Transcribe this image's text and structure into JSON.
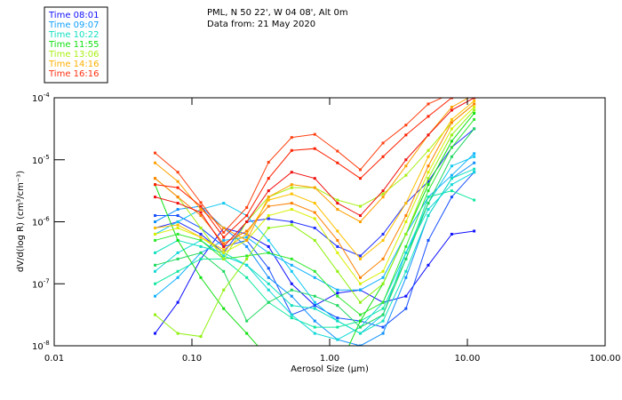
{
  "header": {
    "line1": "PML, N 50 22', W 04 08', Alt 0m",
    "line2": "Data from: 21 May 2020"
  },
  "chart_data": {
    "type": "line",
    "title": "PML, N 50 22', W 04 08', Alt 0m",
    "subtitle": "Data from: 21 May 2020",
    "xlabel": "Aerosol Size (μm)",
    "ylabel": "dV/d(log R) (cm³/cm⁻³)",
    "xscale": "log",
    "yscale": "log",
    "xlim": [
      0.01,
      100
    ],
    "ylim": [
      1e-08,
      0.0001
    ],
    "x_tick_labels": [
      "0.01",
      "0.10",
      "1.00",
      "10.00",
      "100.00"
    ],
    "y_tick_labels": [
      {
        "base": "10",
        "exp": "-4"
      },
      {
        "base": "10",
        "exp": "-5"
      },
      {
        "base": "10",
        "exp": "-6"
      },
      {
        "base": "10",
        "exp": "-7"
      },
      {
        "base": "10",
        "exp": "-8"
      }
    ],
    "legend": {
      "placement": "top-left-outside",
      "entries": [
        {
          "label": "Time 08:01",
          "color": "#1010ff"
        },
        {
          "label": "Time 09:07",
          "color": "#10a0ff"
        },
        {
          "label": "Time 10:22",
          "color": "#10e0c0"
        },
        {
          "label": "Time 11:55",
          "color": "#10e010"
        },
        {
          "label": "Time 13:06",
          "color": "#a8f010"
        },
        {
          "label": "Time 14:16",
          "color": "#ffb000"
        },
        {
          "label": "Time 16:16",
          "color": "#ff3010"
        }
      ]
    },
    "x": [
      0.054,
      0.079,
      0.116,
      0.17,
      0.25,
      0.36,
      0.53,
      0.78,
      1.14,
      1.67,
      2.44,
      3.58,
      5.2,
      7.7,
      11.2
    ],
    "y_note": "values are log10 of dV/d(log R)",
    "series": [
      {
        "name": "08:01 a",
        "color": "#1010ff",
        "values_log10": [
          -7.8,
          -7.3,
          -6.6,
          -6.1,
          -6.2,
          -6.4,
          -7.0,
          -7.35,
          -7.15,
          -7.1,
          -7.3,
          -7.2,
          -6.7,
          -6.2,
          -6.15
        ]
      },
      {
        "name": "08:01 b",
        "color": "#2030ff",
        "values_log10": [
          -6.1,
          -6.0,
          -6.2,
          -6.5,
          -6.0,
          -5.95,
          -6.0,
          -6.1,
          -6.4,
          -6.55,
          -6.2,
          -5.7,
          -5.35,
          -4.8,
          -4.5
        ]
      },
      {
        "name": "08:01 c",
        "color": "#1850ff",
        "values_log10": [
          -5.9,
          -5.9,
          -6.1,
          -6.4,
          -6.3,
          -6.75,
          -7.5,
          -7.35,
          -7.55,
          -7.6,
          -7.7,
          -7.4,
          -6.3,
          -5.6,
          -5.2
        ]
      },
      {
        "name": "09:07 a",
        "color": "#1090ff",
        "values_log10": [
          -6.0,
          -5.8,
          -5.75,
          -6.1,
          -6.4,
          -6.9,
          -7.2,
          -7.6,
          -7.9,
          -8.0,
          -7.8,
          -6.9,
          -5.9,
          -5.3,
          -5.05
        ]
      },
      {
        "name": "09:07 b",
        "color": "#10b0ff",
        "values_log10": [
          -7.2,
          -6.9,
          -6.5,
          -6.3,
          -6.25,
          -6.5,
          -6.7,
          -6.9,
          -7.1,
          -7.1,
          -6.9,
          -6.2,
          -5.6,
          -5.25,
          -4.9
        ]
      },
      {
        "name": "09:07 c",
        "color": "#10c8f0",
        "values_log10": [
          -6.2,
          -6.0,
          -5.8,
          -5.7,
          -5.9,
          -6.3,
          -6.8,
          -7.3,
          -7.6,
          -7.8,
          -7.5,
          -6.5,
          -5.7,
          -5.1,
          -4.95
        ]
      },
      {
        "name": "10:22 a",
        "color": "#10e0c0",
        "values_log10": [
          -6.5,
          -6.3,
          -6.4,
          -6.5,
          -6.7,
          -7.0,
          -7.35,
          -7.4,
          -7.6,
          -7.8,
          -7.6,
          -6.8,
          -5.9,
          -5.3,
          -5.15
        ]
      },
      {
        "name": "10:22 b",
        "color": "#10e8a0",
        "values_log10": [
          -7.0,
          -6.8,
          -6.6,
          -6.6,
          -6.9,
          -7.3,
          -7.55,
          -7.7,
          -7.7,
          -7.6,
          -7.4,
          -6.6,
          -5.6,
          -5.5,
          -5.65
        ]
      },
      {
        "name": "10:22 c",
        "color": "#10d8d8",
        "values_log10": [
          -6.8,
          -6.5,
          -6.3,
          -6.55,
          -6.7,
          -7.1,
          -7.5,
          -7.8,
          -7.9,
          -7.7,
          -7.3,
          -6.5,
          -5.8,
          -5.4,
          -5.2
        ]
      },
      {
        "name": "11:55 a",
        "color": "#10e010",
        "values_log10": [
          -5.4,
          -6.3,
          -6.9,
          -7.4,
          -7.8,
          -8.2,
          -8.5,
          -8.6,
          -8.4,
          -7.6,
          -7.0,
          -6.2,
          -5.4,
          -4.7,
          -4.25
        ]
      },
      {
        "name": "11:55 b",
        "color": "#30e830",
        "values_log10": [
          -6.3,
          -6.2,
          -6.3,
          -6.6,
          -6.55,
          -6.5,
          -6.6,
          -6.8,
          -7.2,
          -7.5,
          -7.3,
          -6.4,
          -5.5,
          -4.8,
          -4.35
        ]
      },
      {
        "name": "11:55 c",
        "color": "#20d860",
        "values_log10": [
          -6.7,
          -6.6,
          -6.5,
          -6.8,
          -7.6,
          -7.3,
          -7.1,
          -7.2,
          -7.35,
          -7.7,
          -7.5,
          -6.6,
          -5.7,
          -4.95,
          -4.5
        ]
      },
      {
        "name": "13:06 a",
        "color": "#a8f010",
        "values_log10": [
          -5.3,
          -5.6,
          -6.1,
          -6.6,
          -6.0,
          -5.6,
          -5.45,
          -5.45,
          -5.65,
          -5.75,
          -5.55,
          -5.25,
          -4.85,
          -4.4,
          -4.1
        ]
      },
      {
        "name": "13:06 b",
        "color": "#d8f000",
        "values_log10": [
          -6.2,
          -6.1,
          -6.25,
          -6.5,
          -6.3,
          -5.9,
          -5.8,
          -5.95,
          -6.5,
          -7.0,
          -6.8,
          -6.0,
          -5.2,
          -4.5,
          -4.15
        ]
      },
      {
        "name": "13:06 c",
        "color": "#90f010",
        "values_log10": [
          -7.5,
          -7.8,
          -7.85,
          -7.1,
          -6.6,
          -6.1,
          -6.05,
          -6.3,
          -6.8,
          -7.3,
          -7.0,
          -6.2,
          -5.3,
          -4.6,
          -4.2
        ]
      },
      {
        "name": "14:16 a",
        "color": "#ffa000",
        "values_log10": [
          -5.05,
          -5.35,
          -5.8,
          -6.1,
          -6.3,
          -5.6,
          -5.4,
          -5.45,
          -5.8,
          -6.0,
          -5.6,
          -5.1,
          -4.6,
          -4.15,
          -3.95
        ]
      },
      {
        "name": "14:16 b",
        "color": "#ffc000",
        "values_log10": [
          -6.1,
          -6.05,
          -6.25,
          -6.45,
          -6.2,
          -5.65,
          -5.55,
          -5.7,
          -6.15,
          -6.6,
          -6.3,
          -5.7,
          -4.95,
          -4.35,
          -4.05
        ]
      },
      {
        "name": "14:16 c",
        "color": "#ff8000",
        "values_log10": [
          -5.3,
          -5.6,
          -5.9,
          -6.35,
          -6.15,
          -5.75,
          -5.7,
          -5.85,
          -6.3,
          -6.9,
          -6.6,
          -5.9,
          -5.1,
          -4.4,
          -4.1
        ]
      },
      {
        "name": "16:16 a",
        "color": "#ff4010",
        "values_log10": [
          -4.89,
          -5.2,
          -5.69,
          -6.17,
          -5.77,
          -5.04,
          -4.64,
          -4.59,
          -4.86,
          -5.16,
          -4.73,
          -4.44,
          -4.1,
          -3.93,
          -3.85
        ]
      },
      {
        "name": "16:16 b",
        "color": "#ff2000",
        "values_log10": [
          -5.4,
          -5.45,
          -5.75,
          -6.25,
          -5.9,
          -5.3,
          -4.85,
          -4.82,
          -5.05,
          -5.3,
          -4.95,
          -4.6,
          -4.3,
          -4.0,
          -3.9
        ]
      },
      {
        "name": "16:16 c",
        "color": "#f01010",
        "values_log10": [
          -5.6,
          -5.7,
          -5.85,
          -6.4,
          -6.0,
          -5.5,
          -5.2,
          -5.3,
          -5.7,
          -5.9,
          -5.5,
          -5.0,
          -4.6,
          -4.2,
          -4.0
        ]
      }
    ]
  }
}
